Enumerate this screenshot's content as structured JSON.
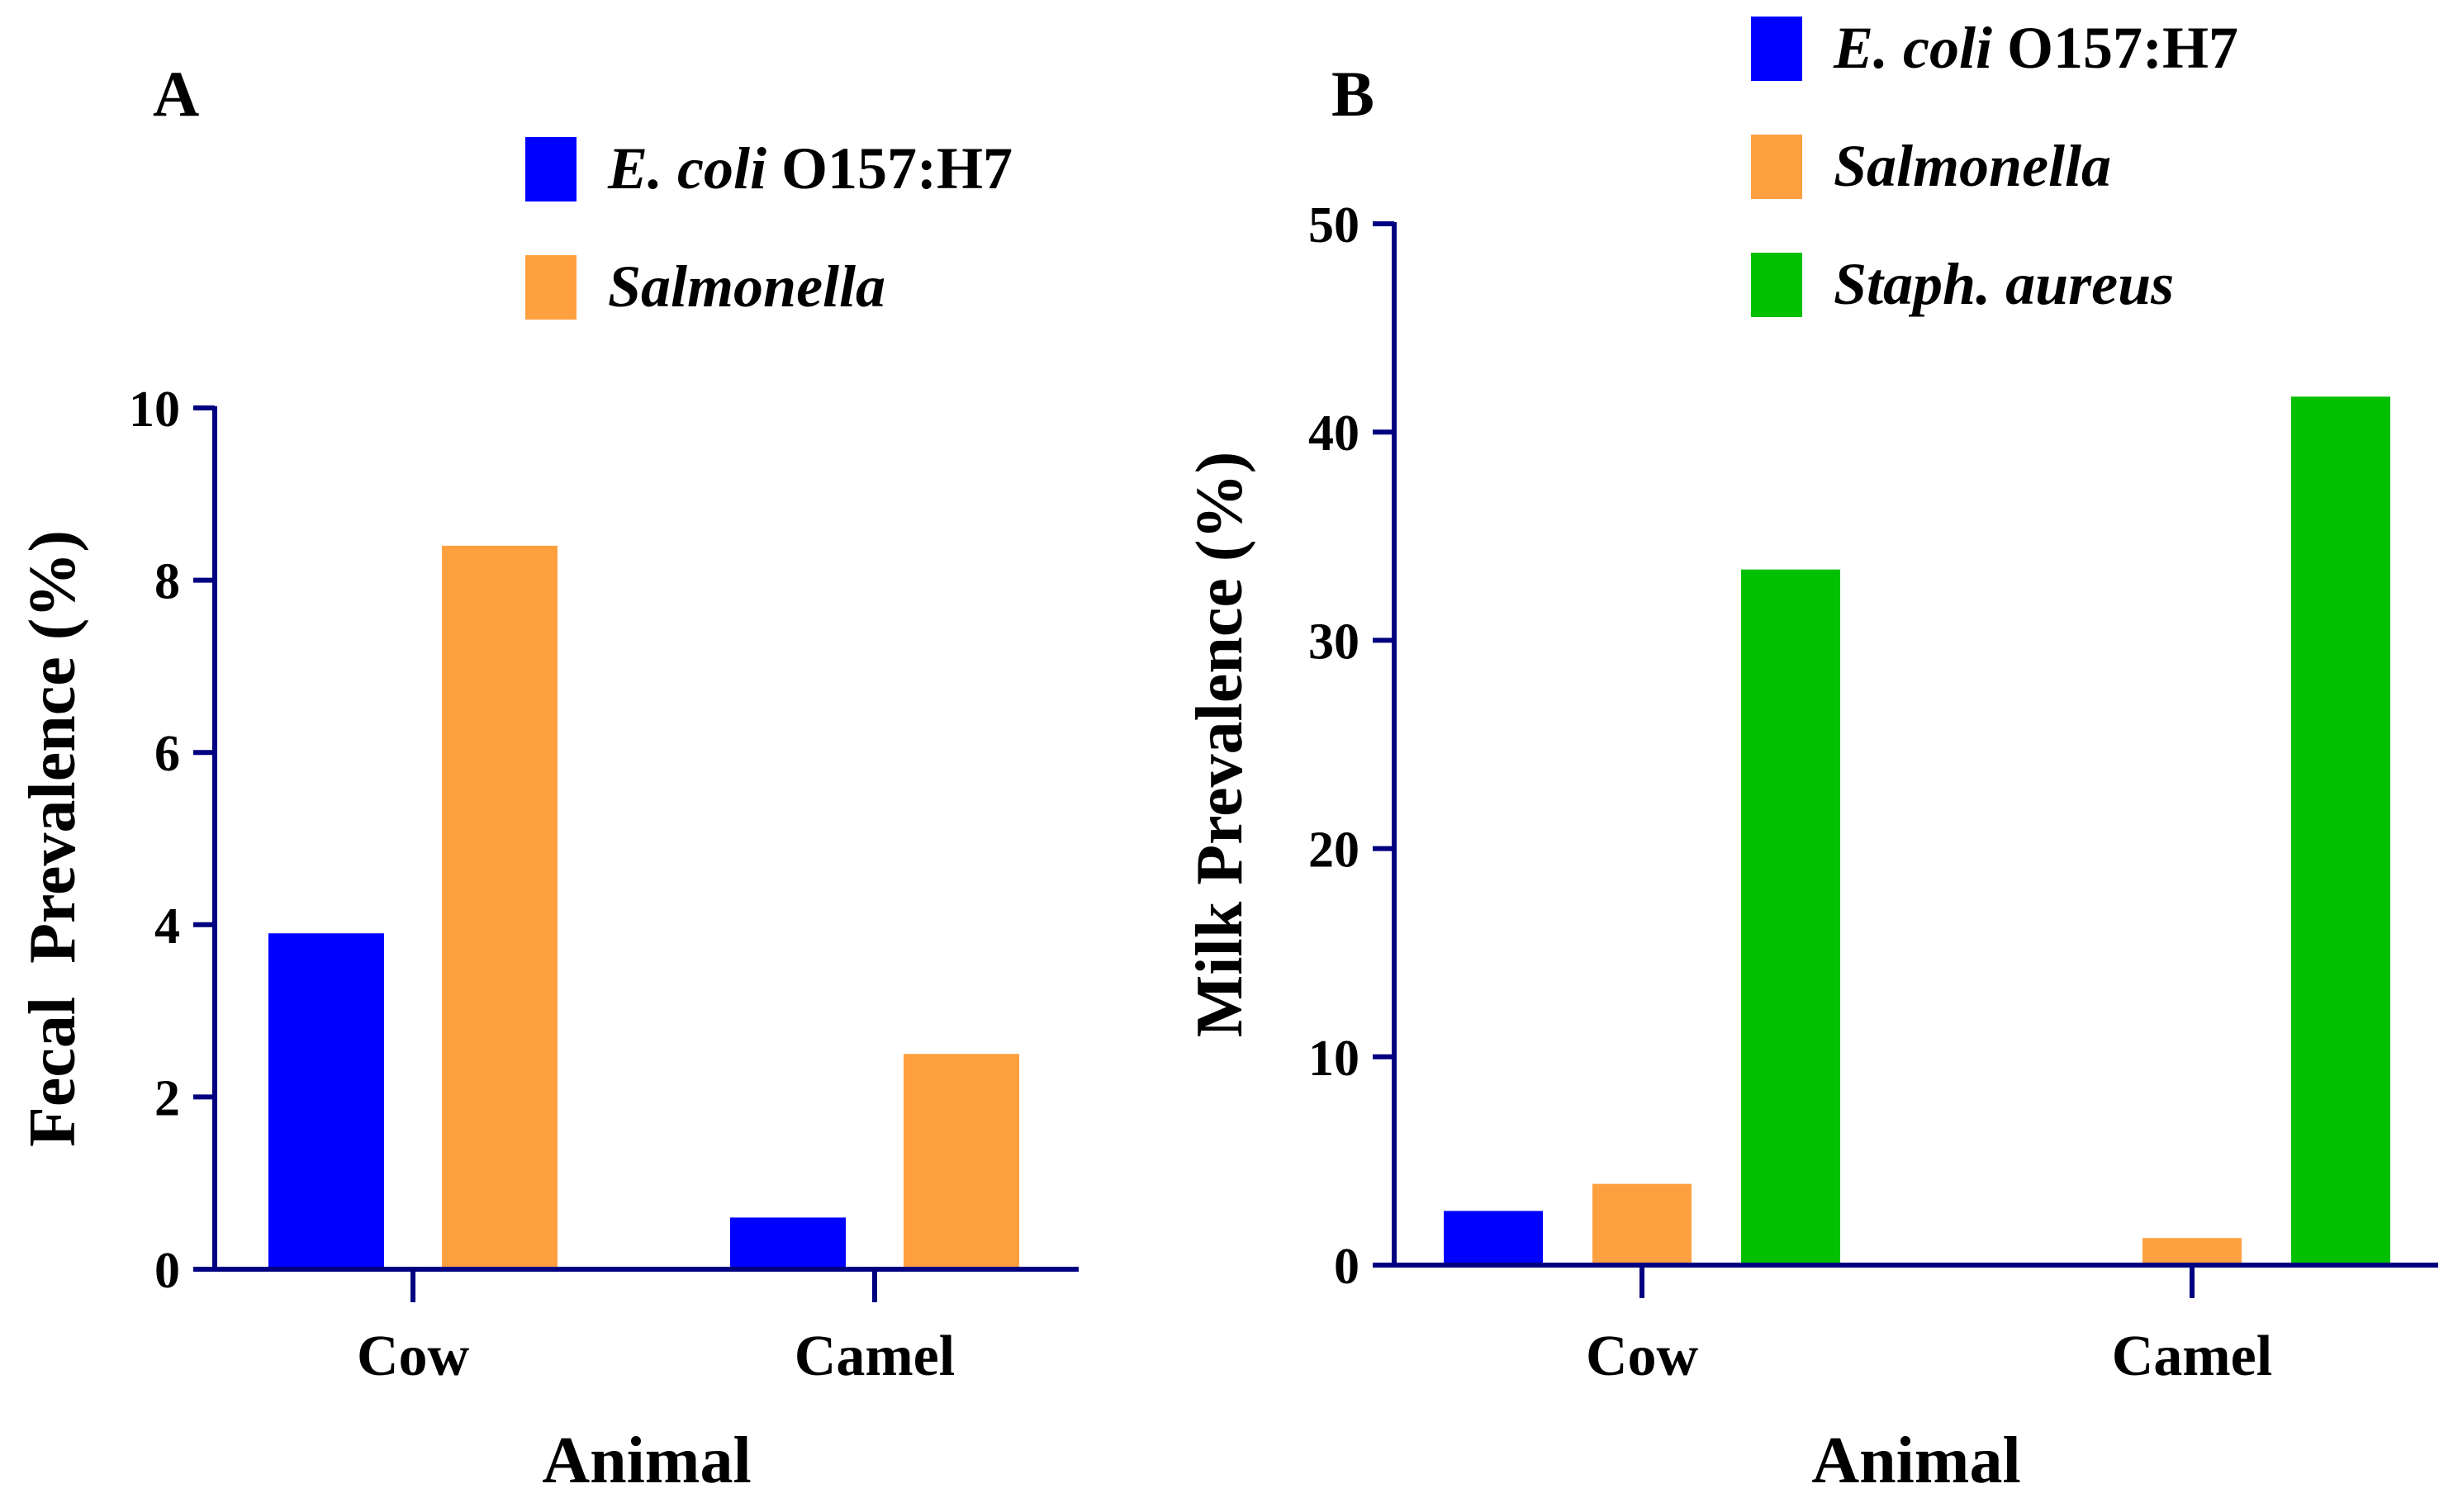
{
  "chart_data": [
    {
      "panel_label": "A",
      "type": "bar",
      "title": "",
      "xlabel": "Animal",
      "ylabel": "Fecal  Prevalence (%)",
      "categories": [
        "Cow",
        "Camel"
      ],
      "ylim": [
        0,
        10
      ],
      "yticks": [
        "0",
        "2",
        "4",
        "6",
        "8",
        "10"
      ],
      "grid": false,
      "legend_position": "top-right",
      "series": [
        {
          "name": "O157:H7",
          "name_prefix": "E. coli",
          "color": "#0000FF",
          "values": [
            3.9,
            0.6
          ]
        },
        {
          "name": "Salmonella",
          "name_prefix": "",
          "color": "#FFA040",
          "values": [
            8.4,
            2.5
          ]
        }
      ]
    },
    {
      "panel_label": "B",
      "type": "bar",
      "title": "",
      "xlabel": "Animal",
      "ylabel": "Milk Prevalence (%)",
      "categories": [
        "Cow",
        "Camel"
      ],
      "ylim": [
        0,
        50
      ],
      "yticks": [
        "0",
        "10",
        "20",
        "30",
        "40",
        "50"
      ],
      "grid": false,
      "legend_position": "top-right",
      "series": [
        {
          "name": "O157:H7",
          "name_prefix": "E. coli",
          "color": "#0000FF",
          "values": [
            2.6,
            0
          ]
        },
        {
          "name": "Salmonella",
          "name_prefix": "",
          "color": "#FFA040",
          "values": [
            3.9,
            1.3
          ]
        },
        {
          "name": "Staph. aureus",
          "name_prefix": "",
          "color": "#00C000",
          "values": [
            33.4,
            41.7
          ]
        }
      ]
    }
  ],
  "colors": {
    "axis": "#000080",
    "text": "#000000"
  }
}
